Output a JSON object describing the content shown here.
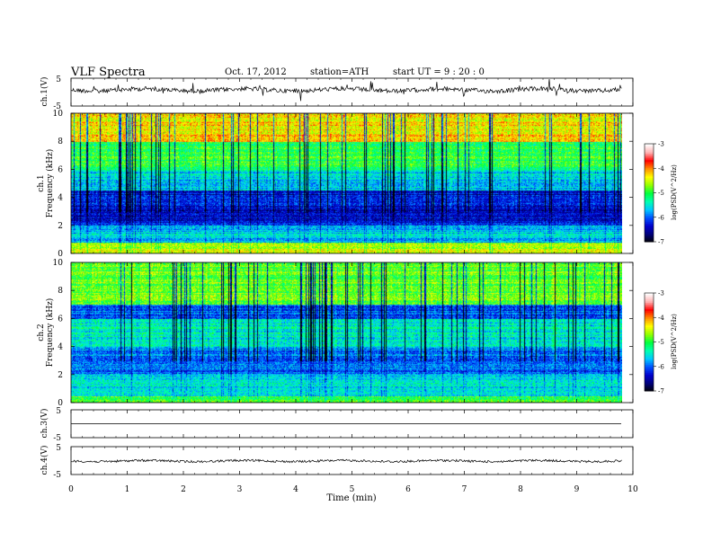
{
  "header": {
    "title": "VLF  Spectra",
    "date": "Oct. 17, 2012",
    "station": "station=ATH",
    "start": "start  UT  =   9  : 20 : 0"
  },
  "chart_data": [
    {
      "type": "line",
      "panel": "ch1-waveform",
      "ylabel": "ch.1(V)",
      "ylim": [
        -5,
        5
      ],
      "y_ticks": [
        "5",
        "-5"
      ],
      "xlim": [
        0,
        10
      ],
      "x_end_data": 9.8,
      "series": [
        {
          "values_summary": "noisy trace around 0 V, amplitude about ±1 V"
        }
      ]
    },
    {
      "type": "heatmap",
      "panel": "ch1-spectrogram",
      "ylabel_line1": "ch.1",
      "ylabel_line2": "Frequency  (kHz)",
      "ylim": [
        0,
        10
      ],
      "y_ticks": [
        "0",
        "2",
        "4",
        "6",
        "8",
        "10"
      ],
      "xlim": [
        0,
        10
      ],
      "x_end_data": 9.8,
      "description_levels": {
        "0-0.8 kHz": "green/yellow/orange",
        "0.8-2 kHz": "cyan/blue bands",
        "2-4.5 kHz": "dark blue",
        "4.5-6 kHz": "cyan",
        "6-8 kHz": "green",
        "8-10 kHz": "yellow/orange/red"
      },
      "colorbar": {
        "label": "log(PSD(V^2/Hz)",
        "range": [
          -7,
          -3
        ],
        "ticks": [
          "-3",
          "-4",
          "-5",
          "-6",
          "-7"
        ]
      }
    },
    {
      "type": "heatmap",
      "panel": "ch2-spectrogram",
      "ylabel_line1": "ch.2",
      "ylabel_line2": "Frequency  (kHz)",
      "ylim": [
        0,
        10
      ],
      "y_ticks": [
        "0",
        "2",
        "4",
        "6",
        "8",
        "10"
      ],
      "xlim": [
        0,
        10
      ],
      "x_end_data": 9.8,
      "colorbar": {
        "label": "log(PSD(V^2/Hz)",
        "range": [
          -7,
          -3
        ],
        "ticks": [
          "-3",
          "-4",
          "-5",
          "-6",
          "-7"
        ]
      }
    },
    {
      "type": "line",
      "panel": "ch3-waveform",
      "ylabel": "ch.3(V)",
      "ylim": [
        -5,
        5
      ],
      "y_ticks": [
        "5",
        "-5"
      ],
      "xlim": [
        0,
        10
      ],
      "x_end_data": 9.8,
      "series": [
        {
          "values_summary": "flat line near 0 V"
        }
      ]
    },
    {
      "type": "line",
      "panel": "ch4-waveform",
      "ylabel": "ch.4(V)",
      "ylim": [
        -5,
        5
      ],
      "y_ticks": [
        "5",
        "-5"
      ],
      "xlim": [
        0,
        10
      ],
      "x_end_data": 9.8,
      "series": [
        {
          "values_summary": "noisy trace around 0 V, small amplitude"
        }
      ]
    }
  ],
  "x_axis": {
    "label": "Time  (min)",
    "ticks": [
      "0",
      "1",
      "2",
      "3",
      "4",
      "5",
      "6",
      "7",
      "8",
      "9",
      "10"
    ]
  },
  "colors": {
    "colormap": [
      "#000000",
      "#00007a",
      "#0000cc",
      "#0050ff",
      "#00c8ff",
      "#00ffb0",
      "#00ff40",
      "#90ff00",
      "#ffff00",
      "#ff9000",
      "#ff0000",
      "#ffb0b0",
      "#ffffff"
    ]
  }
}
